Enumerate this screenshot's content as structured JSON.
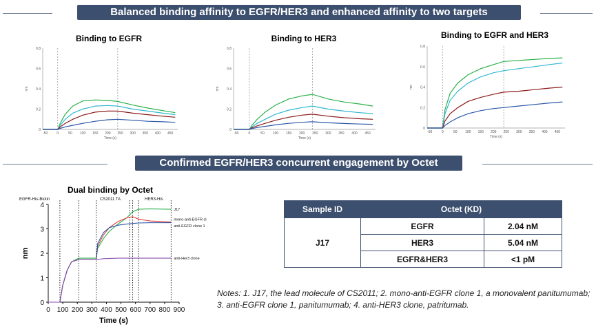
{
  "banner_top": "Balanced binding affinity to EGFR/HER3 and enhanced affinity to two targets",
  "banner_mid": "Confirmed EGFR/HER3 concurrent engagement by Octet",
  "table": {
    "headers": [
      "Sample ID",
      "Octet (KD)"
    ],
    "sample": "J17",
    "rows": [
      {
        "target": "EGFR",
        "kd": "2.04 nM"
      },
      {
        "target": "HER3",
        "kd": "5.04 nM"
      },
      {
        "target": "EGFR&HER3",
        "kd": "<1 pM"
      }
    ]
  },
  "notes": "Notes: 1. J17, the lead molecule of CS2011; 2. mono-anti-EGFR clone 1, a monovalent panitumumab; 3. anti-EGFR clone 1, panitumumab; 4. anti-HER3 clone, patritumab.",
  "colors": {
    "green": "#2ab04a",
    "cyan": "#2fb8d0",
    "darkred": "#8b1a1a",
    "blue": "#2a56a8",
    "purple": "#8a4fb0",
    "red": "#e04040",
    "navy": "#3d4f6e"
  },
  "chart_data": [
    {
      "type": "line",
      "title": "Binding to EGFR",
      "xlabel": "Time (s)",
      "ylabel": "nm",
      "xlim": [
        -60,
        480
      ],
      "ylim": [
        0,
        0.8
      ],
      "x_ticks": [
        "-50",
        "0",
        "50",
        "100",
        "150",
        "200",
        "250",
        "300",
        "350",
        "400",
        "450"
      ],
      "y_ticks": [
        "0",
        "0.2",
        "0.4",
        "0.6",
        "0.8"
      ],
      "x": [
        -60,
        0,
        10,
        30,
        60,
        100,
        150,
        200,
        240,
        300,
        360,
        420,
        470
      ],
      "series": [
        {
          "color": "green",
          "values": [
            0,
            0,
            0.06,
            0.15,
            0.23,
            0.28,
            0.29,
            0.285,
            0.275,
            0.24,
            0.21,
            0.185,
            0.165
          ]
        },
        {
          "color": "cyan",
          "values": [
            0,
            0,
            0.04,
            0.1,
            0.16,
            0.2,
            0.23,
            0.235,
            0.23,
            0.2,
            0.18,
            0.16,
            0.145
          ]
        },
        {
          "color": "darkred",
          "values": [
            0,
            0,
            0.025,
            0.06,
            0.1,
            0.14,
            0.17,
            0.18,
            0.18,
            0.16,
            0.145,
            0.13,
            0.12
          ]
        },
        {
          "color": "blue",
          "values": [
            0,
            0,
            0.01,
            0.025,
            0.04,
            0.06,
            0.08,
            0.095,
            0.1,
            0.09,
            0.08,
            0.075,
            0.07
          ]
        }
      ]
    },
    {
      "type": "line",
      "title": "Binding to HER3",
      "xlabel": "Time (s)",
      "ylabel": "nm",
      "xlim": [
        -60,
        480
      ],
      "ylim": [
        0,
        0.8
      ],
      "x_ticks": [
        "-50",
        "0",
        "50",
        "100",
        "150",
        "200",
        "250",
        "300",
        "350",
        "400",
        "450"
      ],
      "y_ticks": [
        "0",
        "0.2",
        "0.4",
        "0.6",
        "0.8"
      ],
      "x": [
        -60,
        0,
        10,
        30,
        60,
        100,
        150,
        200,
        240,
        300,
        360,
        420,
        470
      ],
      "series": [
        {
          "color": "green",
          "values": [
            0,
            0,
            0.04,
            0.1,
            0.17,
            0.24,
            0.3,
            0.33,
            0.345,
            0.3,
            0.27,
            0.25,
            0.23
          ]
        },
        {
          "color": "cyan",
          "values": [
            0,
            0,
            0.025,
            0.06,
            0.1,
            0.15,
            0.19,
            0.215,
            0.23,
            0.2,
            0.18,
            0.165,
            0.155
          ]
        },
        {
          "color": "darkred",
          "values": [
            0,
            0,
            0.015,
            0.035,
            0.06,
            0.09,
            0.12,
            0.14,
            0.15,
            0.13,
            0.115,
            0.105,
            0.1
          ]
        },
        {
          "color": "blue",
          "values": [
            0,
            0,
            0.008,
            0.018,
            0.03,
            0.045,
            0.06,
            0.07,
            0.075,
            0.065,
            0.058,
            0.053,
            0.05
          ]
        }
      ]
    },
    {
      "type": "line",
      "title": "Binding to EGFR and HER3",
      "xlabel": "Time (s)",
      "ylabel": "nm",
      "xlim": [
        -60,
        480
      ],
      "ylim": [
        0,
        0.8
      ],
      "x_ticks": [
        "-50",
        "0",
        "50",
        "100",
        "150",
        "200",
        "250",
        "300",
        "350",
        "400",
        "450"
      ],
      "y_ticks": [
        "0",
        "0.2",
        "0.4",
        "0.6",
        "0.8"
      ],
      "x": [
        -60,
        0,
        10,
        30,
        60,
        100,
        150,
        200,
        240,
        300,
        360,
        420,
        470
      ],
      "series": [
        {
          "color": "green",
          "values": [
            0,
            0,
            0.18,
            0.34,
            0.44,
            0.52,
            0.58,
            0.62,
            0.65,
            0.66,
            0.67,
            0.68,
            0.685
          ]
        },
        {
          "color": "cyan",
          "values": [
            0,
            0,
            0.14,
            0.27,
            0.36,
            0.44,
            0.5,
            0.54,
            0.56,
            0.58,
            0.6,
            0.62,
            0.635
          ]
        },
        {
          "color": "darkred",
          "values": [
            0,
            0,
            0.07,
            0.14,
            0.2,
            0.26,
            0.3,
            0.33,
            0.35,
            0.36,
            0.375,
            0.39,
            0.4
          ]
        },
        {
          "color": "blue",
          "values": [
            0,
            0,
            0.025,
            0.06,
            0.1,
            0.14,
            0.17,
            0.19,
            0.2,
            0.215,
            0.23,
            0.245,
            0.255
          ]
        }
      ]
    },
    {
      "type": "line",
      "title": "Dual binding by Octet",
      "xlabel": "Time (s)",
      "ylabel": "nm",
      "xlim": [
        0,
        900
      ],
      "ylim": [
        0,
        4
      ],
      "x_ticks": [
        "0",
        "100",
        "200",
        "300",
        "400",
        "500",
        "600",
        "700",
        "800",
        "900"
      ],
      "y_ticks": [
        "0",
        "1",
        "2",
        "3",
        "4"
      ],
      "phase_labels": [
        "EGFR-His-Biotin",
        "CS2011 TA",
        "HER3-His"
      ],
      "series": [
        {
          "name": "J17",
          "color": "green",
          "x": [
            0,
            80,
            100,
            130,
            160,
            210,
            330,
            340,
            380,
            420,
            480,
            540,
            580,
            620,
            700,
            845
          ],
          "values": [
            0,
            0,
            0.7,
            1.3,
            1.65,
            1.8,
            1.8,
            2.2,
            2.6,
            2.9,
            3.2,
            3.45,
            3.7,
            3.8,
            3.82,
            3.8
          ]
        },
        {
          "name": "mono-anti-EGFR clone 1",
          "color": "red",
          "x": [
            0,
            80,
            100,
            130,
            160,
            210,
            330,
            340,
            380,
            420,
            480,
            540,
            580,
            620,
            700,
            845
          ],
          "values": [
            0,
            0,
            0.7,
            1.3,
            1.65,
            1.75,
            1.75,
            2.3,
            2.75,
            3.05,
            3.3,
            3.45,
            3.5,
            3.4,
            3.32,
            3.28
          ]
        },
        {
          "name": "anti-EGFR clone 1",
          "color": "blue",
          "x": [
            0,
            80,
            100,
            130,
            160,
            210,
            330,
            340,
            380,
            420,
            480,
            540,
            580,
            620,
            700,
            845
          ],
          "values": [
            0,
            0,
            0.7,
            1.3,
            1.65,
            1.75,
            1.75,
            2.4,
            2.85,
            3.05,
            3.15,
            3.2,
            3.22,
            3.24,
            3.25,
            3.25
          ]
        },
        {
          "name": "anti-Her3 clone",
          "color": "purple",
          "x": [
            0,
            80,
            100,
            130,
            160,
            210,
            330,
            340,
            380,
            480,
            580,
            620,
            845
          ],
          "values": [
            0,
            0,
            0.7,
            1.3,
            1.65,
            1.75,
            1.75,
            1.75,
            1.78,
            1.8,
            1.8,
            1.8,
            1.8
          ]
        }
      ]
    }
  ]
}
